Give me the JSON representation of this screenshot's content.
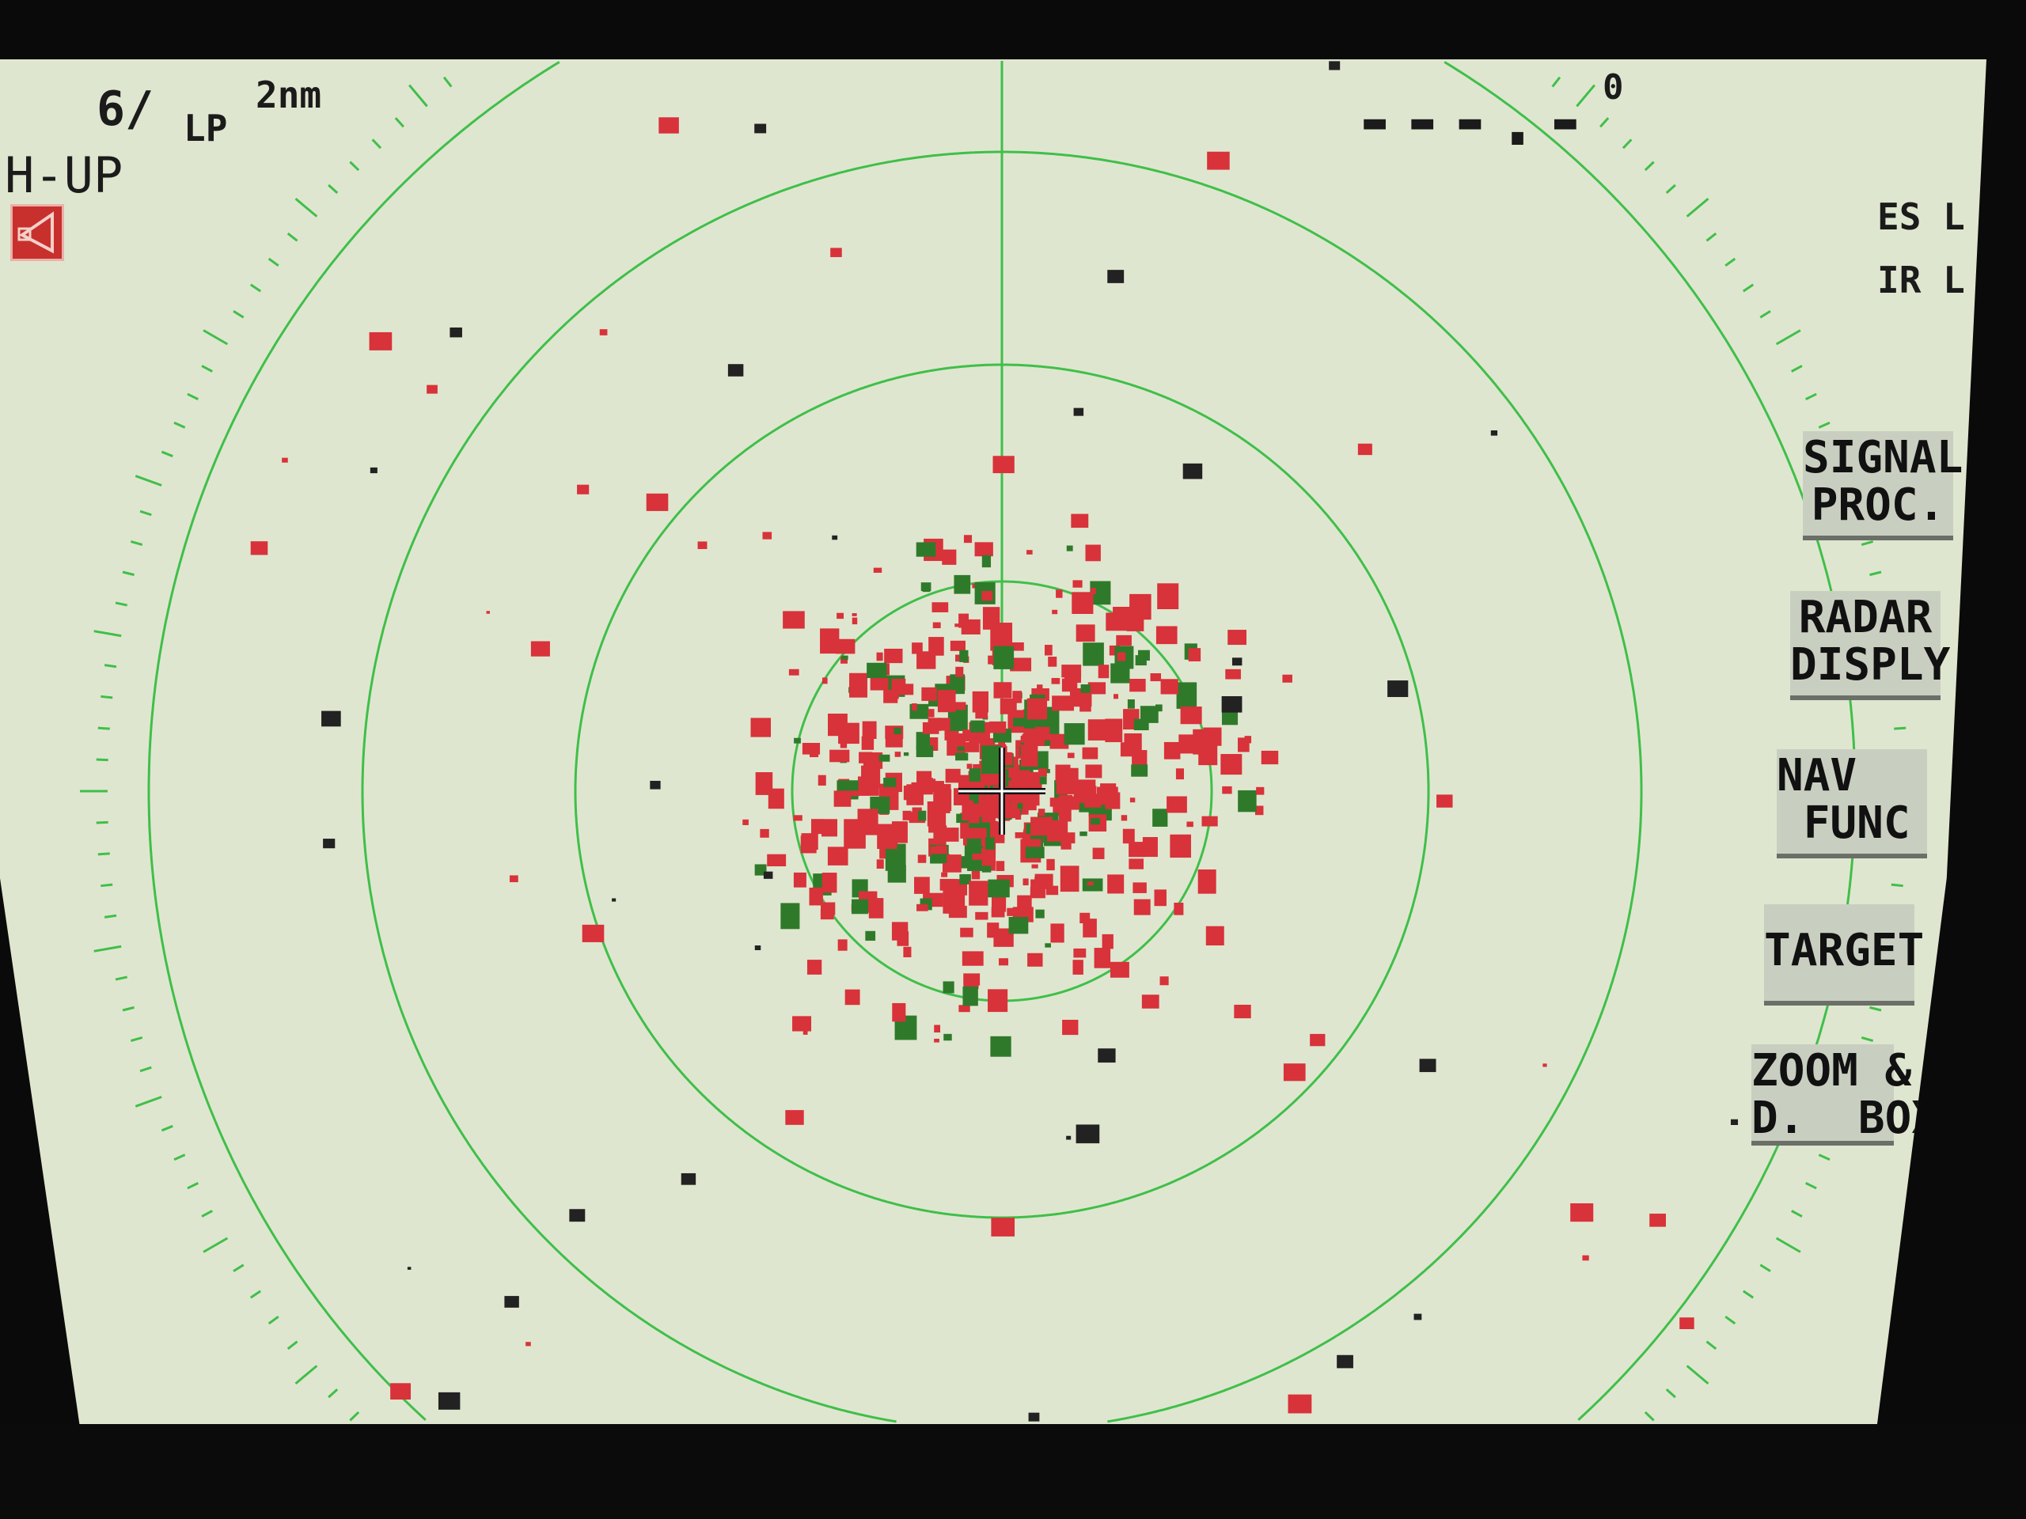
{
  "status": {
    "gain": "6/",
    "pulse": "LP",
    "range": "2nm",
    "orientation": "H-UP",
    "heading_readout": "---.-",
    "heading_degree_mark": "0",
    "es_label": "ES L",
    "ir_label": "IR L"
  },
  "icons": {
    "transmit": "speaker-triangle-icon"
  },
  "menu": [
    {
      "label": "SIGNAL\nPROC."
    },
    {
      "label": "RADAR\nDISPLY"
    },
    {
      "label": "NAV\n FUNC"
    },
    {
      "label": "TARGET"
    },
    {
      "label": "ZOOM &\nD.  BOX"
    }
  ],
  "colors": {
    "screen": "#dfe6cf",
    "rings": "#3fbf4a",
    "echo": "#d8323a",
    "echo_edge": "#2f7a2a",
    "text": "#1b1b1b"
  }
}
